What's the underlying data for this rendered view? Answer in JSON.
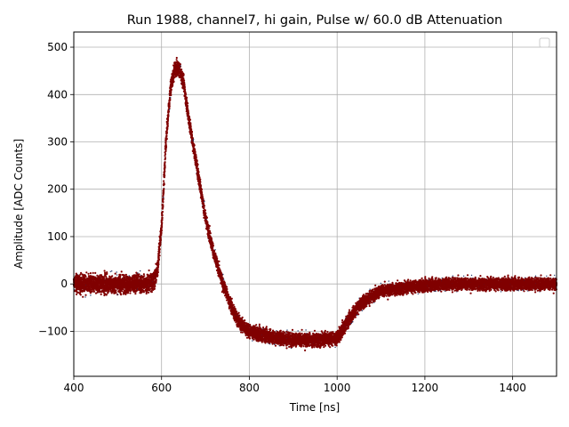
{
  "chart_data": {
    "type": "scatter",
    "title": "Run 1988, channel7, hi gain, Pulse w/ 60.0 dB Attenuation",
    "xlabel": "Time [ns]",
    "ylabel": "Amplitude [ADC Counts]",
    "xlim": [
      400,
      1500
    ],
    "ylim": [
      -195,
      532
    ],
    "xticks": [
      400,
      600,
      800,
      1000,
      1200,
      1400
    ],
    "yticks": [
      -100,
      0,
      100,
      200,
      300,
      400,
      500
    ],
    "grid": true,
    "legend": "top-right, empty",
    "colors": {
      "points": "#800000",
      "outlier_points": "#1f3a6e",
      "grid": "#b0b0b0"
    },
    "series": [
      {
        "x": [
          400,
          560,
          580,
          590,
          600,
          610,
          620,
          630,
          640,
          650,
          660,
          680,
          700,
          720,
          740,
          760,
          780,
          800,
          850,
          900,
          950,
          1000,
          1020,
          1050,
          1080,
          1100,
          1150,
          1200,
          1250,
          1300,
          1400,
          1500
        ],
        "y": [
          0,
          0,
          5,
          25,
          120,
          300,
          410,
          455,
          455,
          425,
          360,
          250,
          140,
          60,
          0,
          -50,
          -85,
          -100,
          -112,
          -118,
          -118,
          -115,
          -85,
          -45,
          -25,
          -15,
          -8,
          -3,
          0,
          0,
          0,
          0
        ],
        "spread": [
          24,
          24,
          24,
          24,
          24,
          24,
          22,
          20,
          20,
          20,
          20,
          20,
          18,
          18,
          18,
          18,
          18,
          18,
          18,
          18,
          18,
          18,
          18,
          18,
          16,
          16,
          16,
          16,
          16,
          16,
          16,
          16
        ]
      }
    ]
  }
}
